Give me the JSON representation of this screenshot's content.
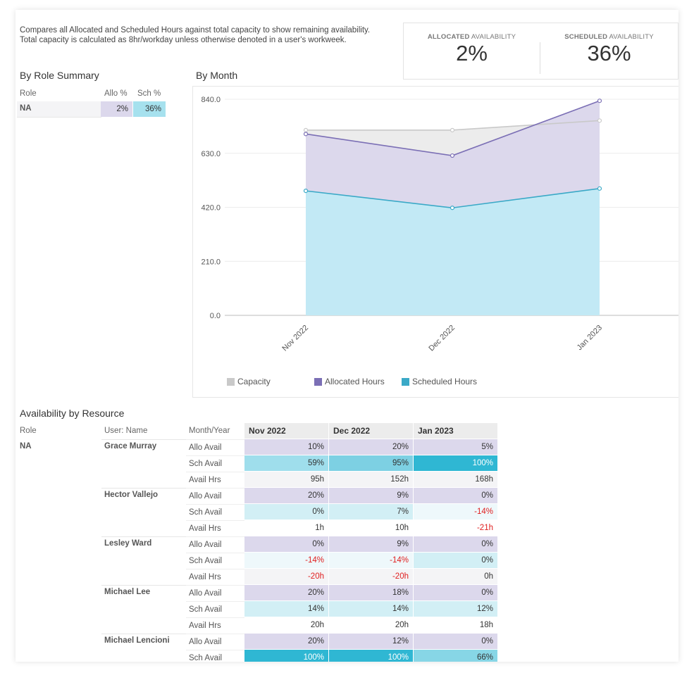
{
  "description": {
    "line1": "Compares all Allocated and Scheduled Hours against total capacity to show remaining availability.",
    "line2": "Total capacity is calculated as 8hr/workday unless otherwise denoted in a user's workweek."
  },
  "kpis": {
    "allocated": {
      "label_bold": "ALLOCATED",
      "label_rest": " AVAILABILITY",
      "value": "2%"
    },
    "scheduled": {
      "label_bold": "SCHEDULED",
      "label_rest": " AVAILABILITY",
      "value": "36%"
    }
  },
  "role_summary": {
    "title": "By Role Summary",
    "headers": {
      "role": "Role",
      "allo": "Allo %",
      "sch": "Sch %"
    },
    "row": {
      "role": "NA",
      "allo": "2%",
      "sch": "36%"
    }
  },
  "colors": {
    "capacity": "#c9c9c9",
    "allocated": "#7b6fb5",
    "scheduled": "#3aa9c7",
    "allo_fill": "#dcd8ec",
    "sch_fill": "#c2e9f5",
    "cap_fill": "#ececec"
  },
  "chart_data": {
    "type": "area",
    "title": "By Month",
    "categories": [
      "Nov 2022",
      "Dec 2022",
      "Jan 2023"
    ],
    "series": [
      {
        "name": "Capacity",
        "values": [
          720,
          720,
          757
        ]
      },
      {
        "name": "Allocated Hours",
        "values": [
          705,
          621,
          834
        ]
      },
      {
        "name": "Scheduled Hours",
        "values": [
          484,
          418,
          493
        ]
      }
    ],
    "y_ticks": [
      "840.0",
      "630.0",
      "420.0",
      "210.0",
      "0.0"
    ],
    "ylim": [
      0,
      840
    ],
    "grid": true,
    "legend_position": "bottom-left"
  },
  "resource": {
    "title": "Availability by Resource",
    "headers": {
      "role": "Role",
      "user": "User: Name",
      "metric": "Month/Year",
      "months": [
        "Nov 2022",
        "Dec 2022",
        "Jan 2023"
      ]
    },
    "role": "NA",
    "users": [
      {
        "name": "Grace Murray",
        "rows": [
          {
            "label": "Allo Avail",
            "values": [
              "10%",
              "20%",
              "5%"
            ]
          },
          {
            "label": "Sch Avail",
            "values": [
              "59%",
              "95%",
              "100%"
            ]
          },
          {
            "label": "Avail Hrs",
            "values": [
              "95h",
              "152h",
              "168h"
            ]
          }
        ]
      },
      {
        "name": "Hector Vallejo",
        "rows": [
          {
            "label": "Allo Avail",
            "values": [
              "20%",
              "9%",
              "0%"
            ]
          },
          {
            "label": "Sch Avail",
            "values": [
              "0%",
              "7%",
              "-14%"
            ]
          },
          {
            "label": "Avail Hrs",
            "values": [
              "1h",
              "10h",
              "-21h"
            ]
          }
        ]
      },
      {
        "name": "Lesley Ward",
        "rows": [
          {
            "label": "Allo Avail",
            "values": [
              "0%",
              "9%",
              "0%"
            ]
          },
          {
            "label": "Sch Avail",
            "values": [
              "-14%",
              "-14%",
              "0%"
            ]
          },
          {
            "label": "Avail Hrs",
            "values": [
              "-20h",
              "-20h",
              "0h"
            ]
          }
        ]
      },
      {
        "name": "Michael Lee",
        "rows": [
          {
            "label": "Allo Avail",
            "values": [
              "20%",
              "18%",
              "0%"
            ]
          },
          {
            "label": "Sch Avail",
            "values": [
              "14%",
              "14%",
              "12%"
            ]
          },
          {
            "label": "Avail Hrs",
            "values": [
              "20h",
              "20h",
              "18h"
            ]
          }
        ]
      },
      {
        "name": "Michael Lencioni",
        "rows": [
          {
            "label": "Allo Avail",
            "values": [
              "20%",
              "12%",
              "0%"
            ]
          },
          {
            "label": "Sch Avail",
            "values": [
              "100%",
              "100%",
              "66%"
            ]
          }
        ]
      }
    ]
  }
}
